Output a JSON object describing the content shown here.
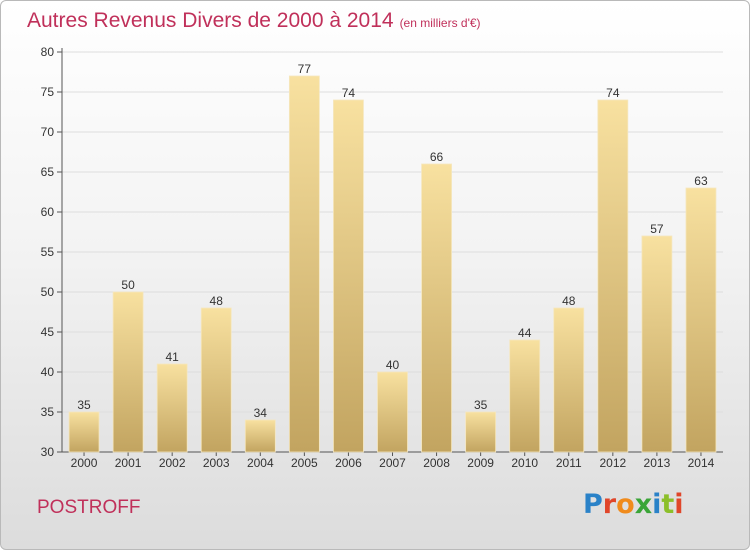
{
  "header": {
    "title": "Autres Revenus Divers de 2000 à 2014",
    "subtitle": "(en milliers d'€)"
  },
  "footer": {
    "commune": "POSTROFF",
    "logo_letters": [
      "P",
      "r",
      "o",
      "x",
      "i",
      "t",
      "i"
    ],
    "logo_colors": [
      "#2a82c8",
      "#e0462a",
      "#f08b1c",
      "#3aa537",
      "#2a82c8",
      "#8cbf2a",
      "#e0462a"
    ]
  },
  "colors": {
    "title": "#c0305a",
    "bar_light": "#f8e1a0",
    "bar_dark": "#c2a460",
    "grid": "#dddddd"
  },
  "chart_data": {
    "type": "bar",
    "categories": [
      "2000",
      "2001",
      "2002",
      "2003",
      "2004",
      "2005",
      "2006",
      "2007",
      "2008",
      "2009",
      "2010",
      "2011",
      "2012",
      "2013",
      "2014"
    ],
    "values": [
      35,
      50,
      41,
      48,
      34,
      77,
      74,
      40,
      66,
      35,
      44,
      48,
      74,
      57,
      63
    ],
    "ylim": [
      30,
      80
    ],
    "yticks": [
      30,
      35,
      40,
      45,
      50,
      55,
      60,
      65,
      70,
      75,
      80
    ],
    "grid": true
  }
}
